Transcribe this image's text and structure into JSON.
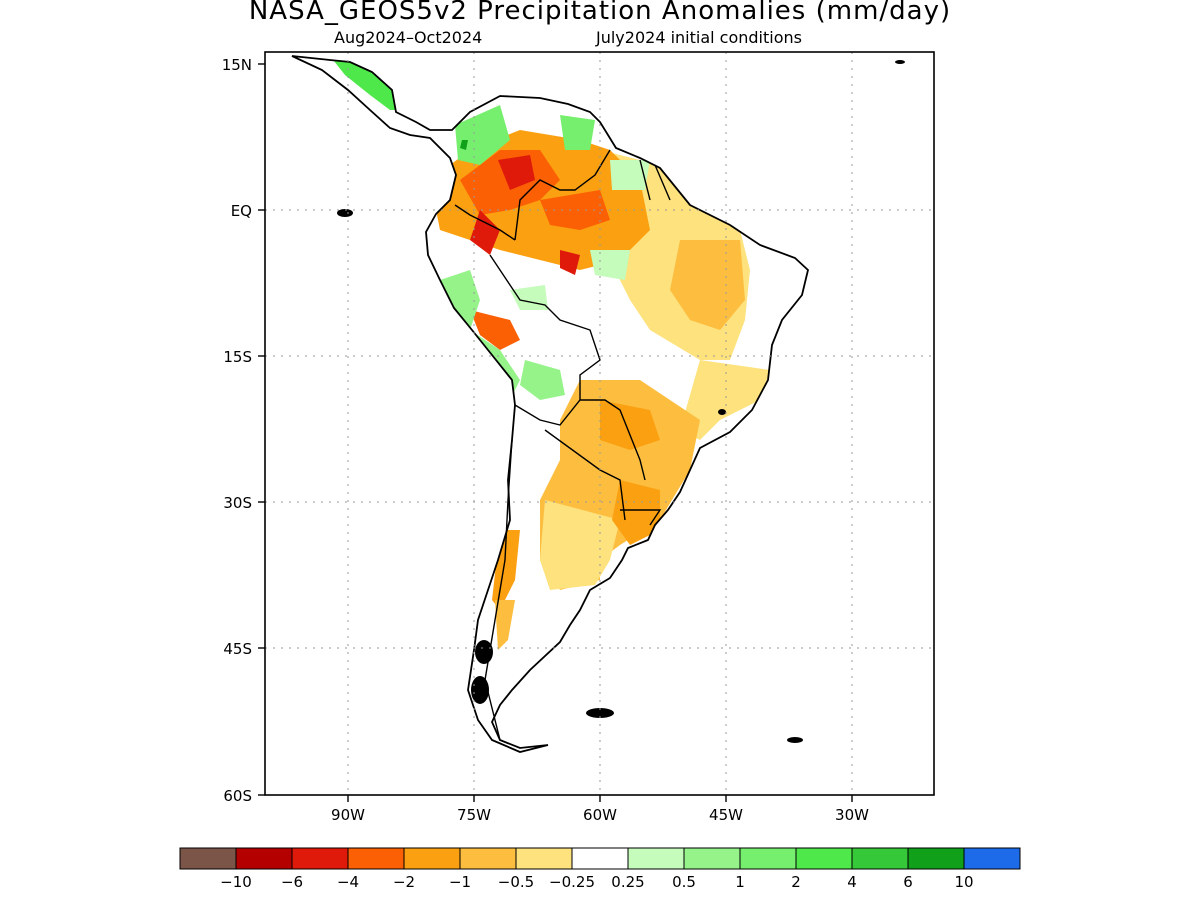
{
  "title": "NASA_GEOS5v2 Precipitation Anomalies (mm/day)",
  "subtitle_period": "Aug2024–Oct2024",
  "subtitle_ic": "July2024 initial conditions",
  "lat_ticks": [
    "15N",
    "EQ",
    "15S",
    "30S",
    "45S",
    "60S"
  ],
  "lon_ticks": [
    "90W",
    "75W",
    "60W",
    "45W",
    "30W"
  ],
  "colorbar": {
    "colors": [
      "#7b5548",
      "#b50000",
      "#df1a0a",
      "#fb6004",
      "#fba010",
      "#fdbe40",
      "#fde27e",
      "#ffffff",
      "#c5fbbb",
      "#95f38a",
      "#77ef6e",
      "#4fe84b",
      "#35c839",
      "#11a01a",
      "#1e6bea"
    ],
    "labels": [
      "−10",
      "−6",
      "−4",
      "−2",
      "−1",
      "−0.5",
      "−0.25",
      "0.25",
      "0.5",
      "1",
      "2",
      "4",
      "6",
      "10"
    ]
  }
}
